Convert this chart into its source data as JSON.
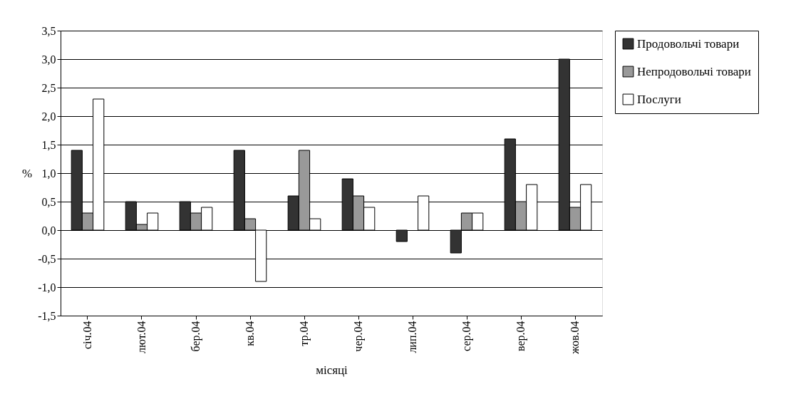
{
  "chart_data": {
    "type": "bar",
    "xlabel": "місяці",
    "ylabel": "%",
    "categories": [
      "січ.04",
      "лют.04",
      "бер.04",
      "кв.04",
      "тр.04",
      "чер.04",
      "лип.04",
      "сер.04",
      "вер.04",
      "жов.04"
    ],
    "series": [
      {
        "name": "Продовольчі товари",
        "color": "#333333",
        "values": [
          1.4,
          0.5,
          0.5,
          1.4,
          0.6,
          0.9,
          -0.2,
          -0.4,
          1.6,
          3.0
        ]
      },
      {
        "name": "Непродовольчі товари",
        "color": "#999999",
        "values": [
          0.3,
          0.1,
          0.3,
          0.2,
          1.4,
          0.6,
          null,
          0.3,
          0.5,
          0.4
        ]
      },
      {
        "name": "Послуги",
        "color": "#ffffff",
        "values": [
          2.3,
          0.3,
          0.4,
          -0.9,
          0.2,
          0.4,
          0.6,
          0.3,
          0.8,
          0.8
        ]
      }
    ],
    "ylim": [
      -1.5,
      3.5
    ],
    "yticks": [
      {
        "value": -1.5,
        "label": "-1,5"
      },
      {
        "value": -1.0,
        "label": "-1,0"
      },
      {
        "value": -0.5,
        "label": "-0,5"
      },
      {
        "value": 0,
        "label": "0,0"
      },
      {
        "value": 0.5,
        "label": "0,5"
      },
      {
        "value": 1.0,
        "label": "1,0"
      },
      {
        "value": 1.5,
        "label": "1,5"
      },
      {
        "value": 2.0,
        "label": "2,0"
      },
      {
        "value": 2.5,
        "label": "2,5"
      },
      {
        "value": 3.0,
        "label": "3,0"
      },
      {
        "value": 3.5,
        "label": "3,5"
      }
    ],
    "grid": "y",
    "legend": "right"
  }
}
